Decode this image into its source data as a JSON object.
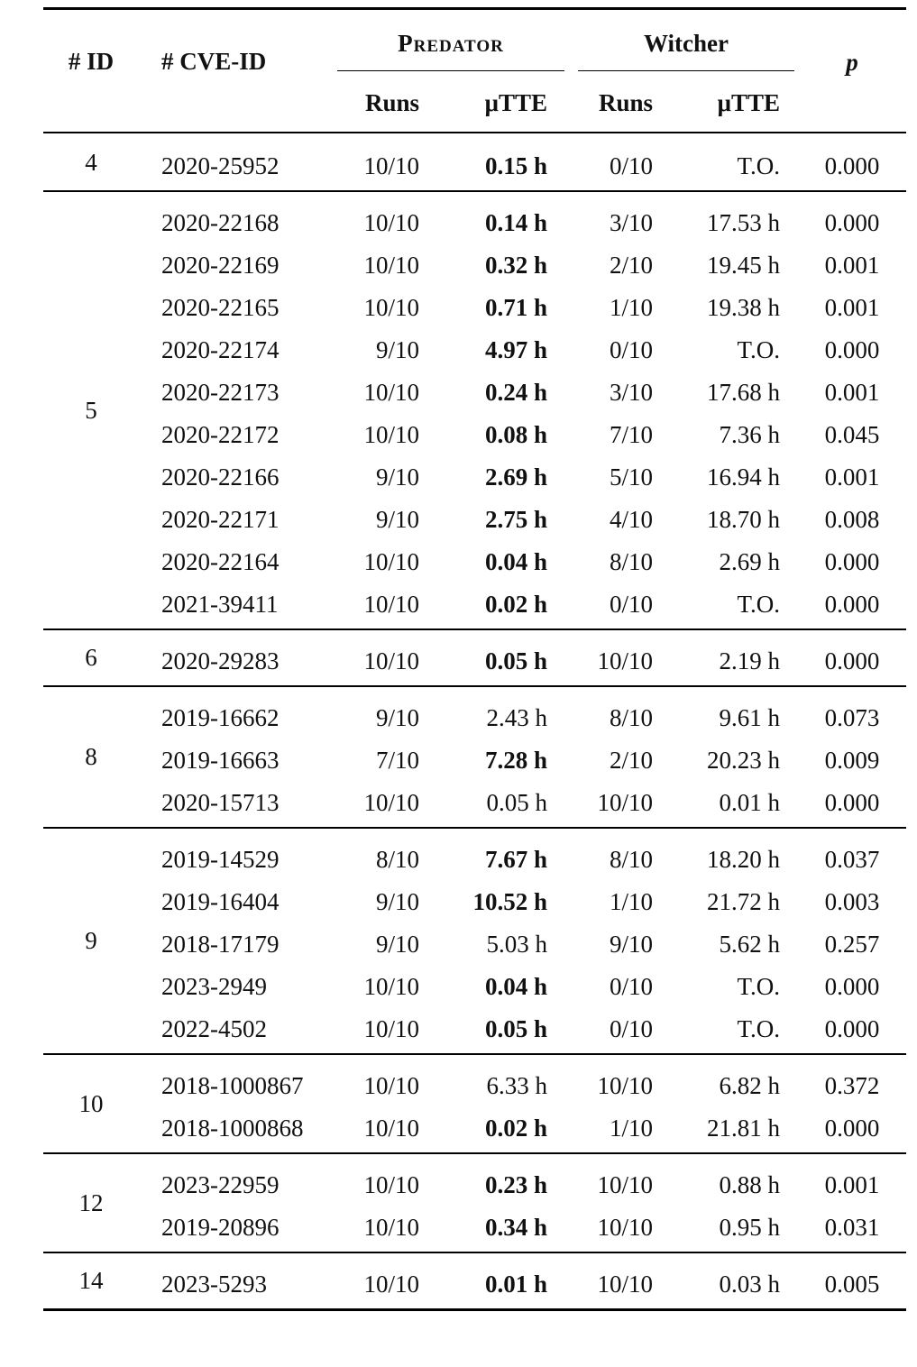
{
  "header": {
    "id_label": "# ID",
    "cve_label": "# CVE-ID",
    "group_predator": "Predator",
    "group_witcher": "Witcher",
    "p_label": "p",
    "runs_label": "Runs",
    "tte_label": "μTTE"
  },
  "groups": [
    {
      "id": "4",
      "rows": [
        {
          "cve": "2020-25952",
          "pred_runs": "10/10",
          "pred_tte": "0.15 h",
          "pred_bold": true,
          "wit_runs": "0/10",
          "wit_tte": "T.O.",
          "p": "0.000"
        }
      ]
    },
    {
      "id": "5",
      "rows": [
        {
          "cve": "2020-22168",
          "pred_runs": "10/10",
          "pred_tte": "0.14 h",
          "pred_bold": true,
          "wit_runs": "3/10",
          "wit_tte": "17.53 h",
          "p": "0.000"
        },
        {
          "cve": "2020-22169",
          "pred_runs": "10/10",
          "pred_tte": "0.32 h",
          "pred_bold": true,
          "wit_runs": "2/10",
          "wit_tte": "19.45 h",
          "p": "0.001"
        },
        {
          "cve": "2020-22165",
          "pred_runs": "10/10",
          "pred_tte": "0.71 h",
          "pred_bold": true,
          "wit_runs": "1/10",
          "wit_tte": "19.38 h",
          "p": "0.001"
        },
        {
          "cve": "2020-22174",
          "pred_runs": "9/10",
          "pred_tte": "4.97 h",
          "pred_bold": true,
          "wit_runs": "0/10",
          "wit_tte": "T.O.",
          "p": "0.000"
        },
        {
          "cve": "2020-22173",
          "pred_runs": "10/10",
          "pred_tte": "0.24 h",
          "pred_bold": true,
          "wit_runs": "3/10",
          "wit_tte": "17.68 h",
          "p": "0.001"
        },
        {
          "cve": "2020-22172",
          "pred_runs": "10/10",
          "pred_tte": "0.08 h",
          "pred_bold": true,
          "wit_runs": "7/10",
          "wit_tte": "7.36 h",
          "p": "0.045"
        },
        {
          "cve": "2020-22166",
          "pred_runs": "9/10",
          "pred_tte": "2.69 h",
          "pred_bold": true,
          "wit_runs": "5/10",
          "wit_tte": "16.94 h",
          "p": "0.001"
        },
        {
          "cve": "2020-22171",
          "pred_runs": "9/10",
          "pred_tte": "2.75 h",
          "pred_bold": true,
          "wit_runs": "4/10",
          "wit_tte": "18.70 h",
          "p": "0.008"
        },
        {
          "cve": "2020-22164",
          "pred_runs": "10/10",
          "pred_tte": "0.04 h",
          "pred_bold": true,
          "wit_runs": "8/10",
          "wit_tte": "2.69 h",
          "p": "0.000"
        },
        {
          "cve": "2021-39411",
          "pred_runs": "10/10",
          "pred_tte": "0.02 h",
          "pred_bold": true,
          "wit_runs": "0/10",
          "wit_tte": "T.O.",
          "p": "0.000"
        }
      ]
    },
    {
      "id": "6",
      "rows": [
        {
          "cve": "2020-29283",
          "pred_runs": "10/10",
          "pred_tte": "0.05 h",
          "pred_bold": true,
          "wit_runs": "10/10",
          "wit_tte": "2.19 h",
          "p": "0.000"
        }
      ]
    },
    {
      "id": "8",
      "rows": [
        {
          "cve": "2019-16662",
          "pred_runs": "9/10",
          "pred_tte": "2.43 h",
          "pred_bold": false,
          "wit_runs": "8/10",
          "wit_tte": "9.61 h",
          "p": "0.073"
        },
        {
          "cve": "2019-16663",
          "pred_runs": "7/10",
          "pred_tte": "7.28 h",
          "pred_bold": true,
          "wit_runs": "2/10",
          "wit_tte": "20.23 h",
          "p": "0.009"
        },
        {
          "cve": "2020-15713",
          "pred_runs": "10/10",
          "pred_tte": "0.05 h",
          "pred_bold": false,
          "wit_runs": "10/10",
          "wit_tte": "0.01 h",
          "p": "0.000"
        }
      ]
    },
    {
      "id": "9",
      "rows": [
        {
          "cve": "2019-14529",
          "pred_runs": "8/10",
          "pred_tte": "7.67 h",
          "pred_bold": true,
          "wit_runs": "8/10",
          "wit_tte": "18.20 h",
          "p": "0.037"
        },
        {
          "cve": "2019-16404",
          "pred_runs": "9/10",
          "pred_tte": "10.52 h",
          "pred_bold": true,
          "wit_runs": "1/10",
          "wit_tte": "21.72 h",
          "p": "0.003"
        },
        {
          "cve": "2018-17179",
          "pred_runs": "9/10",
          "pred_tte": "5.03 h",
          "pred_bold": false,
          "wit_runs": "9/10",
          "wit_tte": "5.62 h",
          "p": "0.257"
        },
        {
          "cve": "2023-2949",
          "pred_runs": "10/10",
          "pred_tte": "0.04 h",
          "pred_bold": true,
          "wit_runs": "0/10",
          "wit_tte": "T.O.",
          "p": "0.000"
        },
        {
          "cve": "2022-4502",
          "pred_runs": "10/10",
          "pred_tte": "0.05 h",
          "pred_bold": true,
          "wit_runs": "0/10",
          "wit_tte": "T.O.",
          "p": "0.000"
        }
      ]
    },
    {
      "id": "10",
      "rows": [
        {
          "cve": "2018-1000867",
          "pred_runs": "10/10",
          "pred_tte": "6.33 h",
          "pred_bold": false,
          "wit_runs": "10/10",
          "wit_tte": "6.82 h",
          "p": "0.372"
        },
        {
          "cve": "2018-1000868",
          "pred_runs": "10/10",
          "pred_tte": "0.02 h",
          "pred_bold": true,
          "wit_runs": "1/10",
          "wit_tte": "21.81 h",
          "p": "0.000"
        }
      ]
    },
    {
      "id": "12",
      "rows": [
        {
          "cve": "2023-22959",
          "pred_runs": "10/10",
          "pred_tte": "0.23 h",
          "pred_bold": true,
          "wit_runs": "10/10",
          "wit_tte": "0.88 h",
          "p": "0.001"
        },
        {
          "cve": "2019-20896",
          "pred_runs": "10/10",
          "pred_tte": "0.34 h",
          "pred_bold": true,
          "wit_runs": "10/10",
          "wit_tte": "0.95 h",
          "p": "0.031"
        }
      ]
    },
    {
      "id": "14",
      "rows": [
        {
          "cve": "2023-5293",
          "pred_runs": "10/10",
          "pred_tte": "0.01 h",
          "pred_bold": true,
          "wit_runs": "10/10",
          "wit_tte": "0.03 h",
          "p": "0.005"
        }
      ]
    }
  ]
}
